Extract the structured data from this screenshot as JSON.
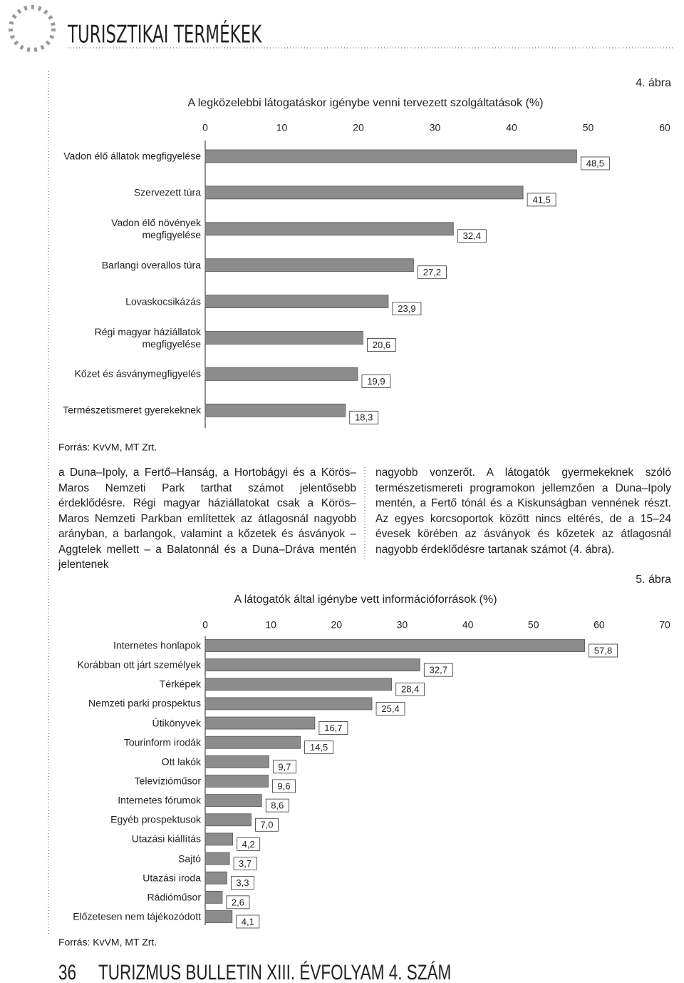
{
  "header": {
    "title": "TURISZTIKAI TERMÉKEK"
  },
  "chart_data": [
    {
      "type": "bar",
      "orientation": "horizontal",
      "figure": "4. ábra",
      "title": "A legközelebbi látogatáskor igénybe venni tervezett szolgáltatások (%)",
      "categories": [
        "Vadon élő állatok megfigyelése",
        "Szervezett túra",
        "Vadon élő növények megfigyelése",
        "Barlangi overallos túra",
        "Lovaskocsikázás",
        "Régi magyar háziállatok megfigyelése",
        "Kőzet és ásványmegfigyelés",
        "Természetismeret gyerekeknek"
      ],
      "values": [
        48.5,
        41.5,
        32.4,
        27.2,
        23.9,
        20.6,
        19.9,
        18.3
      ],
      "value_labels": [
        "48,5",
        "41,5",
        "32,4",
        "27,2",
        "23,9",
        "20,6",
        "19,9",
        "18,3"
      ],
      "xlim": [
        0,
        60
      ],
      "xticks": [
        0,
        10,
        20,
        30,
        40,
        50,
        60
      ],
      "color": "#8c8c8c",
      "source": "Forrás: KvVM, MT Zrt."
    },
    {
      "type": "bar",
      "orientation": "horizontal",
      "figure": "5. ábra",
      "title": "A látogatók által igénybe vett információforrások (%)",
      "categories": [
        "Internetes honlapok",
        "Korábban ott járt személyek",
        "Térképek",
        "Nemzeti parki prospektus",
        "Útikönyvek",
        "Tourinform irodák",
        "Ott lakók",
        "Televízióműsor",
        "Internetes fórumok",
        "Egyéb prospektusok",
        "Utazási kiállítás",
        "Sajtó",
        "Utazási iroda",
        "Rádióműsor",
        "Előzetesen nem tájékozódott"
      ],
      "values": [
        57.8,
        32.7,
        28.4,
        25.4,
        16.7,
        14.5,
        9.7,
        9.6,
        8.6,
        7.0,
        4.2,
        3.7,
        3.3,
        2.6,
        4.1
      ],
      "value_labels": [
        "57,8",
        "32,7",
        "28,4",
        "25,4",
        "16,7",
        "14,5",
        "9,7",
        "9,6",
        "8,6",
        "7,0",
        "4,2",
        "3,7",
        "3,3",
        "2,6",
        "4,1"
      ],
      "xlim": [
        0,
        70
      ],
      "xticks": [
        0,
        10,
        20,
        30,
        40,
        50,
        60,
        70
      ],
      "color": "#8c8c8c",
      "source": "Forrás: KvVM, MT Zrt."
    }
  ],
  "text": {
    "left": "a Duna–Ipoly, a Fertő–Hanság, a Hortobágyi és a Körös–Maros Nemzeti Park tarthat számot jelentősebb érdeklődésre. Régi magyar háziállatokat csak a Körös–Maros Nemzeti Parkban említettek az átlagosnál nagyobb arányban, a barlangok, valamint a kőzetek és ásványok – Aggtelek mellett – a Balatonnál és a Duna–Dráva mentén jelentenek",
    "right": "nagyobb vonzerőt. A látogatók gyermekeknek szóló természetismereti programokon jellemzően a Duna–Ipoly mentén, a Fertő tónál és a Kiskunságban vennének részt. Az egyes korcsoportok között nincs eltérés, de a 15–24 évesek körében az ásványok és kőzetek az átlagosnál nagyobb érdeklődésre tartanak számot (4. ábra)."
  },
  "footer": {
    "page": "36",
    "title": "TURIZMUS BULLETIN XIII. ÉVFOLYAM 4. SZÁM"
  }
}
